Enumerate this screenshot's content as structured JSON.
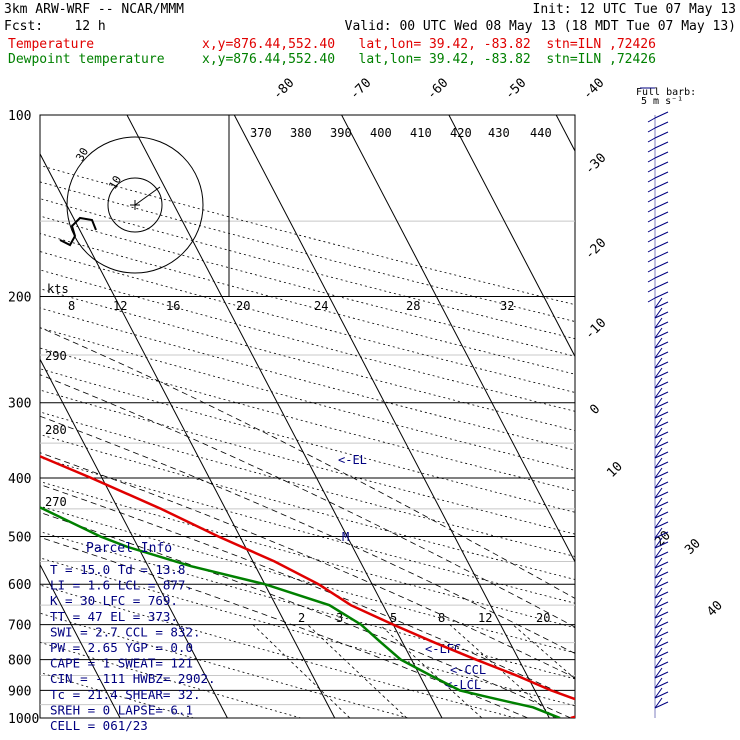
{
  "header": {
    "model": "3km ARW-WRF -- NCAR/MMM",
    "init": "Init: 12 UTC Tue 07 May 13",
    "fcst": "Fcst:    12 h",
    "valid": "Valid: 00 UTC Wed 08 May 13 (18 MDT Tue 07 May 13)",
    "temp_label": "Temperature",
    "temp_info": "x,y=876.44,552.40   lat,lon= 39.42, -83.82  stn=ILN ,72426",
    "dew_label": "Dewpoint temperature",
    "dew_info": "x,y=876.44,552.40   lat,lon= 39.42, -83.82  stn=ILN ,72426",
    "barb_title": "Full barb:",
    "barb_units": "5 m s⁻¹"
  },
  "colors": {
    "temperature": "#e00000",
    "dewpoint": "#008000",
    "text_blue": "#000080"
  },
  "chart_data": {
    "type": "line",
    "title": "",
    "xlabel": "",
    "ylabel": "",
    "pressure_levels": [
      "100",
      "200",
      "300",
      "400",
      "500",
      "600",
      "700",
      "800",
      "900",
      "1000"
    ],
    "isotherm_labels": [
      "-80",
      "-70",
      "-60",
      "-50",
      "-40",
      "-30",
      "-20",
      "-10",
      "0",
      "10",
      "20",
      "30",
      "40"
    ],
    "theta_labels_top": [
      "370",
      "380",
      "390",
      "400",
      "410",
      "420",
      "430",
      "440"
    ],
    "theta_labels_left": [
      "290",
      "280",
      "270"
    ],
    "mixing_ratio_labels": [
      "2",
      "3",
      "5",
      "8",
      "12",
      "20"
    ],
    "hodograph_labels": [
      "kts",
      "8",
      "12",
      "16",
      "20",
      "24",
      "28",
      "32"
    ],
    "hodo_ring_labels": [
      "30",
      "10"
    ],
    "markers": {
      "el": "<-EL",
      "lfc": "<-LFC",
      "ccl": "<-CCL",
      "lcl": "<-LCL",
      "m": "M"
    },
    "series": [
      {
        "name": "Temperature",
        "points": [
          [
            1000,
            12
          ],
          [
            970,
            15
          ],
          [
            950,
            14.5
          ],
          [
            925,
            13
          ],
          [
            900,
            11.5
          ],
          [
            850,
            9
          ],
          [
            800,
            6
          ],
          [
            750,
            3
          ],
          [
            700,
            0
          ],
          [
            650,
            -3
          ],
          [
            600,
            -5
          ],
          [
            550,
            -8
          ],
          [
            500,
            -12
          ],
          [
            450,
            -16
          ],
          [
            400,
            -21
          ],
          [
            350,
            -27
          ],
          [
            300,
            -34
          ],
          [
            270,
            -39
          ],
          [
            250,
            -42
          ],
          [
            230,
            -45
          ],
          [
            210,
            -47
          ],
          [
            200,
            -48
          ],
          [
            185,
            -48
          ],
          [
            170,
            -49
          ],
          [
            150,
            -51
          ],
          [
            130,
            -53
          ],
          [
            115,
            -55
          ],
          [
            100,
            -57
          ]
        ]
      },
      {
        "name": "Dewpoint temperature",
        "points": [
          [
            1000,
            11
          ],
          [
            980,
            10
          ],
          [
            960,
            9
          ],
          [
            940,
            7
          ],
          [
            920,
            5
          ],
          [
            900,
            3
          ],
          [
            850,
            1
          ],
          [
            800,
            -1
          ],
          [
            750,
            -2
          ],
          [
            700,
            -3
          ],
          [
            650,
            -5
          ],
          [
            600,
            -10
          ],
          [
            560,
            -16
          ],
          [
            520,
            -21
          ],
          [
            500,
            -23
          ],
          [
            450,
            -27
          ],
          [
            400,
            -32
          ],
          [
            350,
            -39
          ],
          [
            300,
            -45
          ],
          [
            260,
            -51
          ],
          [
            230,
            -55
          ],
          [
            210,
            -57
          ],
          [
            200,
            -58
          ],
          [
            185,
            -60
          ],
          [
            170,
            -62
          ],
          [
            150,
            -66
          ],
          [
            130,
            -67
          ],
          [
            115,
            -69
          ],
          [
            100,
            -70
          ]
        ]
      }
    ]
  },
  "parcel_info": {
    "title": "Parcel Info",
    "rows": [
      "T  =   15.0  Td =  13.8",
      "LI =    1.6  LCL =  877.",
      "K  =     30  LFC =  769.",
      "TT =     47  EL  =  373.",
      "SWI =   2.7  CCL =  832.",
      "PW =   2.65  YGP =   0.0",
      "CAPE =    1  SWEAT=  121",
      "CIN =  -111  HWBZ= 2902.",
      "Tc =   21.4  SHEAR=  32.",
      "SREH =    0  LAPSE=  6.1",
      "CELL = 061/23"
    ]
  }
}
